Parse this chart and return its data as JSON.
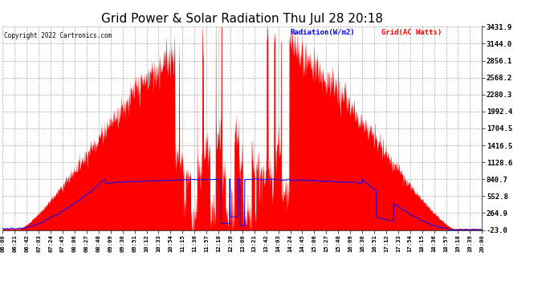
{
  "title": "Grid Power & Solar Radiation Thu Jul 28 20:18",
  "copyright": "Copyright 2022 Cartronics.com",
  "legend_radiation": "Radiation(W/m2)",
  "legend_grid": "Grid(AC Watts)",
  "legend_radiation_color": "blue",
  "legend_grid_color": "red",
  "y_min": -23.0,
  "y_max": 3431.9,
  "y_ticks": [
    3431.9,
    3144.0,
    2856.1,
    2568.2,
    2280.3,
    1992.4,
    1704.5,
    1416.5,
    1128.6,
    840.7,
    552.8,
    264.9,
    -23.0
  ],
  "background_color": "#ffffff",
  "grid_color": "#bbbbbb",
  "fill_color_solar": "red",
  "x_tick_labels": [
    "06:00",
    "06:21",
    "06:42",
    "07:03",
    "07:24",
    "07:45",
    "08:06",
    "08:27",
    "08:48",
    "09:09",
    "09:30",
    "09:51",
    "10:12",
    "10:33",
    "10:54",
    "11:15",
    "11:36",
    "11:57",
    "12:18",
    "12:39",
    "13:00",
    "13:21",
    "13:42",
    "14:03",
    "14:24",
    "14:45",
    "15:06",
    "15:27",
    "15:48",
    "16:09",
    "16:30",
    "16:51",
    "17:12",
    "17:33",
    "17:54",
    "18:15",
    "18:36",
    "18:57",
    "19:18",
    "19:39",
    "20:00"
  ]
}
